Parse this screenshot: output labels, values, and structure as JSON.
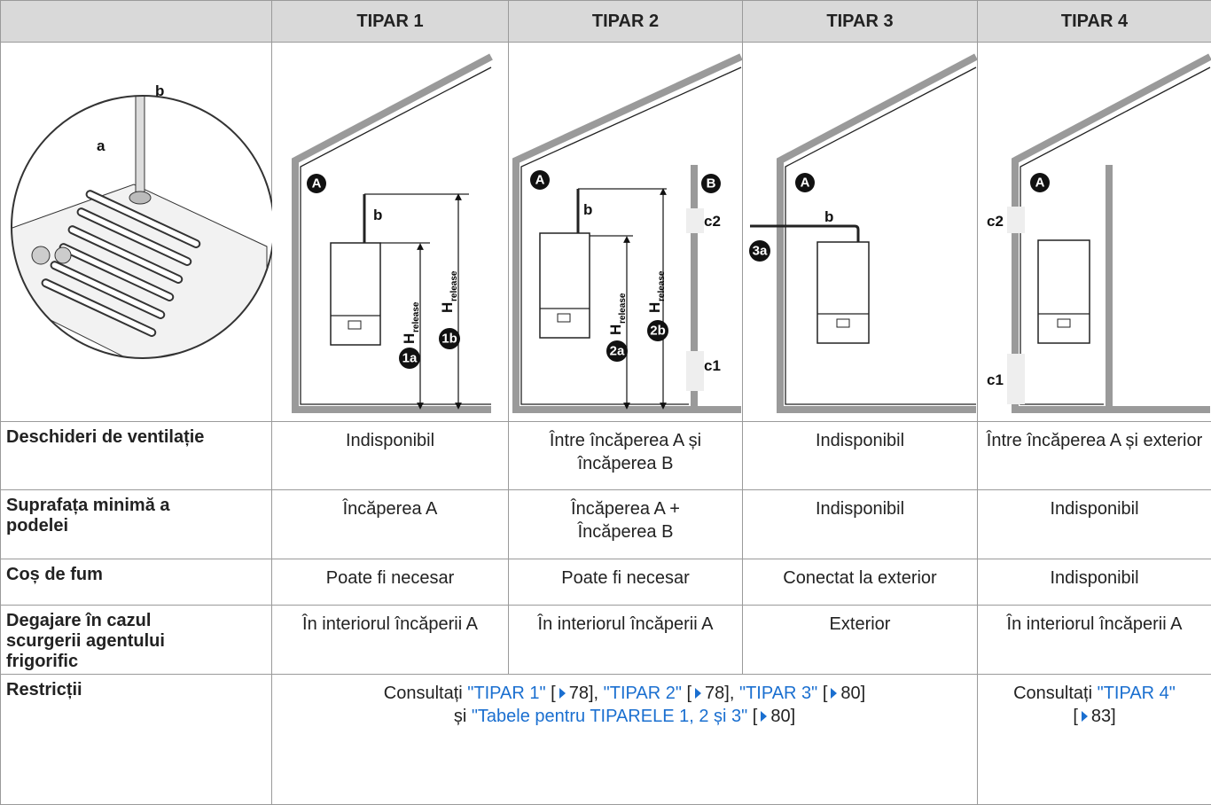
{
  "table": {
    "header": [
      "TIPAR 1",
      "TIPAR 2",
      "TIPAR 3",
      "TIPAR 4"
    ],
    "figures": {
      "detail": [
        "b",
        "a"
      ],
      "tipar_1": {
        "room": "A",
        "pipe": "b",
        "h1": {
          "main": "H",
          "sub": "release"
        },
        "h2": {
          "main": "H",
          "sub": "release"
        },
        "m1": "1a",
        "m2": "1b"
      },
      "tipar_2": {
        "room_a": "A",
        "room_b": "B",
        "pipe": "b",
        "vent_top": "c2",
        "vent_bottom": "c1",
        "h1": {
          "main": "H",
          "sub": "release"
        },
        "h2": {
          "main": "H",
          "sub": "release"
        },
        "m1": "2a",
        "m2": "2b"
      },
      "tipar_3": {
        "room": "A",
        "pipe": "b",
        "m1": "3a"
      },
      "tipar_4": {
        "room": "A",
        "vent_top": "c2",
        "vent_bottom": "c1"
      }
    },
    "rows": [
      {
        "label": "Deschideri de ventilație",
        "cells": [
          "Indisponibil",
          "Între încăperea A și încăperea B",
          "Indisponibil",
          "Între încăperea A și exterior"
        ]
      },
      {
        "label": "Suprafața minimă a podelei",
        "cells": [
          "Încăperea A",
          "Încăperea A + Încăperea B",
          "Indisponibil",
          "Indisponibil"
        ]
      },
      {
        "label": "Coș de fum",
        "cells": [
          "Poate fi necesar",
          "Poate fi necesar",
          "Conectat la exterior",
          "Indisponibil"
        ]
      },
      {
        "label": "Degajare în cazul scurgerii agentului frigorific",
        "cells": [
          "În interiorul încăperii A",
          "În interiorul încăperii A",
          "Exterior",
          "În interiorul încăperii A"
        ]
      }
    ],
    "restrictions": {
      "label": "Restricții",
      "group_1_3": [
        "Consultați ",
        "\"TIPAR 1\"",
        " [",
        "78",
        "], ",
        "\"TIPAR 2\"",
        " [",
        "78",
        "], ",
        "\"TIPAR 3\"",
        " [",
        "80",
        "]",
        "și ",
        "\"Tabele pentru TIPARELE 1, 2 și 3\"",
        " [",
        "80",
        "]"
      ],
      "group_4": [
        "Consultați ",
        "\"TIPAR 4\"",
        " [",
        "83",
        "]"
      ]
    }
  }
}
